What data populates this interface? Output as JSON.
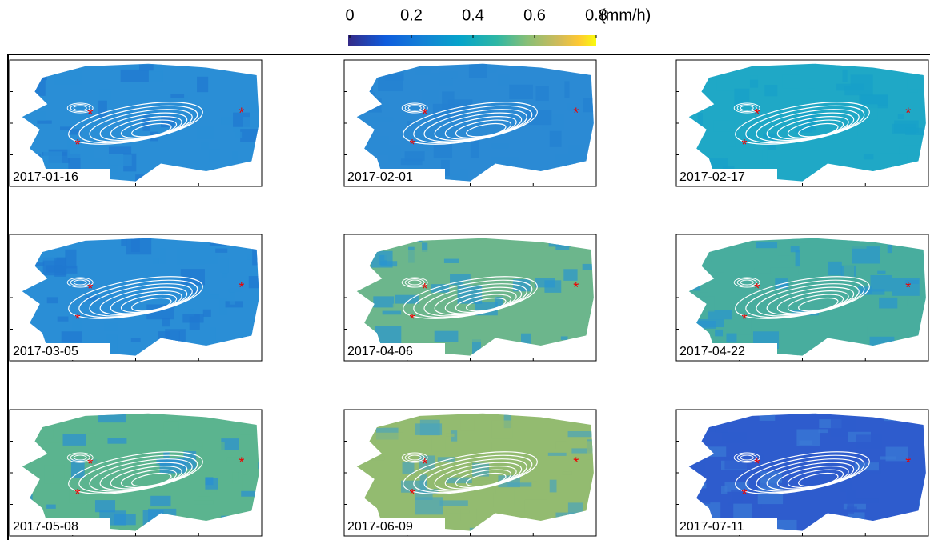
{
  "colorbar": {
    "unit": "(mm/h)",
    "lim": [
      0,
      0.8
    ],
    "ticks": [
      0,
      0.2,
      0.4,
      0.6,
      0.8
    ]
  },
  "panels": [
    {
      "date": "2017-01-16"
    },
    {
      "date": "2017-02-01"
    },
    {
      "date": "2017-02-17"
    },
    {
      "date": "2017-03-05"
    },
    {
      "date": "2017-04-06"
    },
    {
      "date": "2017-04-22"
    },
    {
      "date": "2017-05-08"
    },
    {
      "date": "2017-06-09"
    },
    {
      "date": "2017-07-11"
    }
  ]
}
